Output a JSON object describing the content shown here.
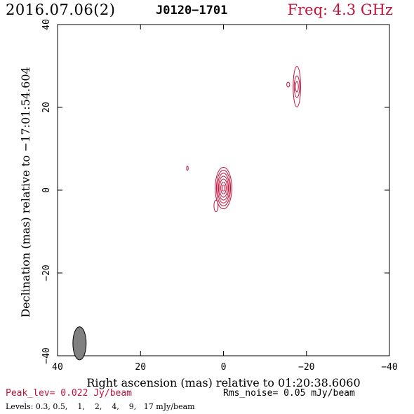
{
  "header": {
    "date": "2016.07.06(2)",
    "source": "J0120−1701",
    "freq": "Freq: 4.3 GHz"
  },
  "colors": {
    "contour": "#c0143c",
    "beam": "#808080",
    "axis": "#000000"
  },
  "chart_data": {
    "type": "contour",
    "xlabel": "Right ascension (mas) relative to 01:20:38.6060",
    "ylabel": "Declination (mas) relative to −17:01:54.604",
    "xlim": [
      40,
      -40
    ],
    "ylim": [
      -40,
      40
    ],
    "x_ticks": [
      40,
      20,
      0,
      -20,
      -40
    ],
    "y_ticks": [
      -40,
      -20,
      0,
      20,
      40
    ],
    "x_tick_labels": [
      "40",
      "20",
      "0",
      "−20",
      "−40"
    ],
    "y_tick_labels": [
      "−40",
      "−20",
      "0",
      "20",
      "40"
    ],
    "contour_levels_mJy": [
      0.3,
      0.5,
      1,
      2,
      4,
      9,
      17
    ],
    "components": [
      {
        "x": 0.0,
        "y": 0.5,
        "contours": [
          {
            "a": 2.0,
            "b": 5.0
          },
          {
            "a": 1.7,
            "b": 4.3
          },
          {
            "a": 1.45,
            "b": 3.6
          },
          {
            "a": 1.2,
            "b": 2.9
          },
          {
            "a": 0.95,
            "b": 2.2
          },
          {
            "a": 0.65,
            "b": 1.4
          },
          {
            "a": 0.35,
            "b": 0.7
          }
        ]
      },
      {
        "x": -17.7,
        "y": 25.0,
        "contours": [
          {
            "a": 0.9,
            "b": 4.9
          },
          {
            "a": 0.65,
            "b": 2.6
          },
          {
            "a": 0.35,
            "b": 1.3
          }
        ]
      },
      {
        "x": -15.6,
        "y": 25.5,
        "contours": [
          {
            "a": 0.35,
            "b": 0.6
          }
        ]
      },
      {
        "x": 8.7,
        "y": 5.3,
        "contours": [
          {
            "a": 0.2,
            "b": 0.5
          }
        ]
      },
      {
        "x": 1.8,
        "y": -3.8,
        "contours": [
          {
            "a": 0.5,
            "b": 1.4
          }
        ]
      }
    ],
    "beam": {
      "x": 34.7,
      "y": -37.0,
      "major_mas": 4.0,
      "minor_mas": 1.6
    }
  },
  "footer": {
    "peak": "Peak_lev=  0.022 Jy/beam",
    "noise": "Rms_noise= 0.05 mJy/beam",
    "levels": "Levels: 0.3, 0.5,    1,    2,    4,    9,   17 mJy/beam"
  }
}
